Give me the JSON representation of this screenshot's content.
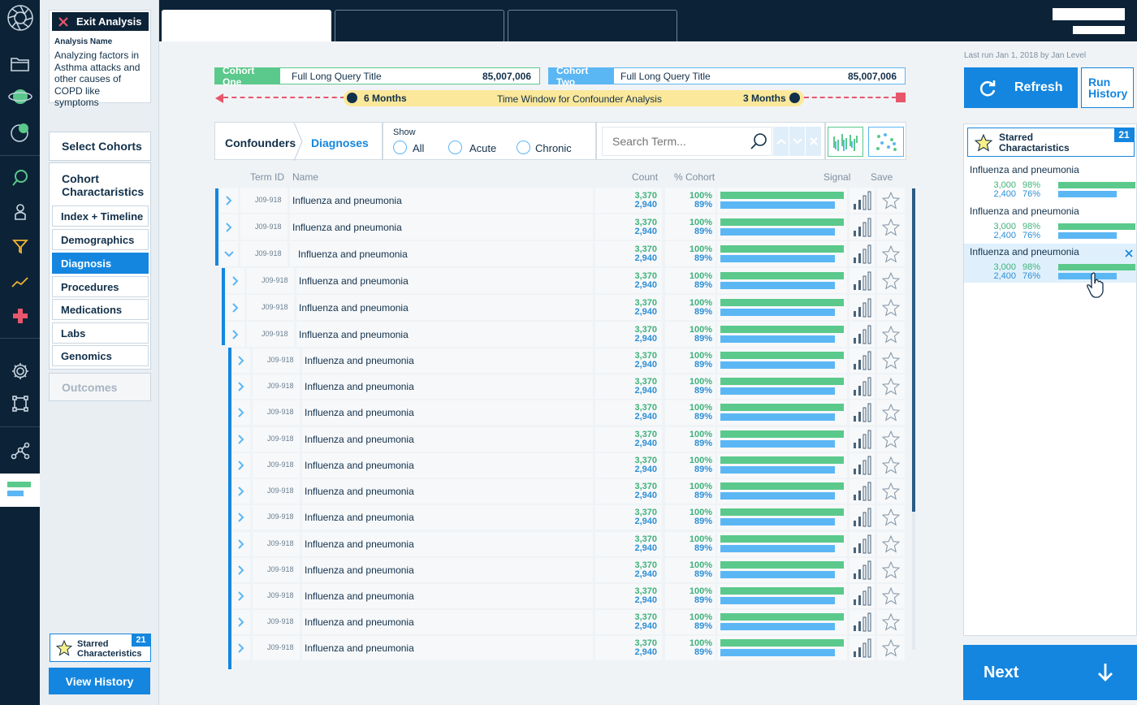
{
  "left_panel": {
    "exit_label": "Exit Analysis",
    "analysis_name_label": "Analysis Name",
    "analysis_name": "Analyzing factors in Asthma attacks and other causes of COPD like symptoms",
    "select_cohorts": "Select Cohorts",
    "cohort_char_title": "Cohort Charactaristics",
    "nav": [
      "Index + Timeline",
      "Demographics",
      "Diagnosis",
      "Procedures",
      "Medications",
      "Labs",
      "Genomics"
    ],
    "outcomes": "Outcomes",
    "starred_label": "Starred Characteristics",
    "starred_count": "21",
    "view_history": "View History"
  },
  "cohorts": {
    "one_tag": "Cohort One",
    "one_title": "Full Long Query Title",
    "one_count": "85,007,006",
    "two_tag": "Cohort Two",
    "two_title": "Full Long Query Title",
    "two_count": "85,007,006"
  },
  "timeline": {
    "left_label": "6 Months",
    "center_label": "Time Window for Confounder Analysis",
    "right_label": "3 Months"
  },
  "filters": {
    "crumb1": "Confounders",
    "crumb2": "Diagnoses",
    "show_label": "Show",
    "options": [
      "All",
      "Acute",
      "Chronic"
    ],
    "search_placeholder": "Search Term..."
  },
  "table": {
    "headers": {
      "term_id": "Term ID",
      "name": "Name",
      "count": "Count",
      "cohort_pct": "% Cohort",
      "signal": "Signal",
      "save": "Save"
    },
    "rows": [
      {
        "id": "J09-918",
        "name": "Influenza and pneumonia",
        "c1": "3,370",
        "c2": "2,940",
        "p1": "100%",
        "p2": "89%",
        "level": 0,
        "exp": "collapsed"
      },
      {
        "id": "J09-918",
        "name": "Influenza and pneumonia",
        "c1": "3,370",
        "c2": "2,940",
        "p1": "100%",
        "p2": "89%",
        "level": 0,
        "exp": "collapsed"
      },
      {
        "id": "J09-918",
        "name": "Influenza and pneumonia",
        "c1": "3,370",
        "c2": "2,940",
        "p1": "100%",
        "p2": "89%",
        "level": 0,
        "exp": "expanded"
      },
      {
        "id": "J09-918",
        "name": "Influenza and pneumonia",
        "c1": "3,370",
        "c2": "2,940",
        "p1": "100%",
        "p2": "89%",
        "level": 1,
        "exp": "collapsed"
      },
      {
        "id": "J09-918",
        "name": "Influenza and pneumonia",
        "c1": "3,370",
        "c2": "2,940",
        "p1": "100%",
        "p2": "89%",
        "level": 1,
        "exp": "collapsed"
      },
      {
        "id": "J09-918",
        "name": "Influenza and pneumonia",
        "c1": "3,370",
        "c2": "2,940",
        "p1": "100%",
        "p2": "89%",
        "level": 1,
        "exp": "collapsed"
      },
      {
        "id": "J09-918",
        "name": "Influenza and pneumonia",
        "c1": "3,370",
        "c2": "2,940",
        "p1": "100%",
        "p2": "89%",
        "level": 2,
        "exp": "collapsed"
      },
      {
        "id": "J09-918",
        "name": "Influenza and pneumonia",
        "c1": "3,370",
        "c2": "2,940",
        "p1": "100%",
        "p2": "89%",
        "level": 2,
        "exp": "collapsed"
      },
      {
        "id": "J09-918",
        "name": "Influenza and pneumonia",
        "c1": "3,370",
        "c2": "2,940",
        "p1": "100%",
        "p2": "89%",
        "level": 2,
        "exp": "collapsed"
      },
      {
        "id": "J09-918",
        "name": "Influenza and pneumonia",
        "c1": "3,370",
        "c2": "2,940",
        "p1": "100%",
        "p2": "89%",
        "level": 2,
        "exp": "collapsed"
      },
      {
        "id": "J09-918",
        "name": "Influenza and pneumonia",
        "c1": "3,370",
        "c2": "2,940",
        "p1": "100%",
        "p2": "89%",
        "level": 2,
        "exp": "collapsed"
      },
      {
        "id": "J09-918",
        "name": "Influenza and pneumonia",
        "c1": "3,370",
        "c2": "2,940",
        "p1": "100%",
        "p2": "89%",
        "level": 2,
        "exp": "collapsed"
      },
      {
        "id": "J09-918",
        "name": "Influenza and pneumonia",
        "c1": "3,370",
        "c2": "2,940",
        "p1": "100%",
        "p2": "89%",
        "level": 2,
        "exp": "collapsed"
      },
      {
        "id": "J09-918",
        "name": "Influenza and pneumonia",
        "c1": "3,370",
        "c2": "2,940",
        "p1": "100%",
        "p2": "89%",
        "level": 2,
        "exp": "collapsed"
      },
      {
        "id": "J09-918",
        "name": "Influenza and pneumonia",
        "c1": "3,370",
        "c2": "2,940",
        "p1": "100%",
        "p2": "89%",
        "level": 2,
        "exp": "collapsed"
      },
      {
        "id": "J09-918",
        "name": "Influenza and pneumonia",
        "c1": "3,370",
        "c2": "2,940",
        "p1": "100%",
        "p2": "89%",
        "level": 2,
        "exp": "collapsed"
      },
      {
        "id": "J09-918",
        "name": "Influenza and pneumonia",
        "c1": "3,370",
        "c2": "2,940",
        "p1": "100%",
        "p2": "89%",
        "level": 2,
        "exp": "collapsed"
      },
      {
        "id": "J09-918",
        "name": "Influenza and pneumonia",
        "c1": "3,370",
        "c2": "2,940",
        "p1": "100%",
        "p2": "89%",
        "level": 2,
        "exp": "collapsed"
      }
    ]
  },
  "right_panel": {
    "last_run": "Last run Jan 1, 2018 by Jan Level",
    "refresh_label": "Refresh",
    "run_history_label": "Run History",
    "starred_title": "Starred Charactaristics",
    "starred_count": "21",
    "items": [
      {
        "name": "Influenza and pneumonia",
        "c1": "3,000",
        "p1": "98%",
        "c2": "2,400",
        "p2": "76%"
      },
      {
        "name": "Influenza and pneumonia",
        "c1": "3,000",
        "p1": "98%",
        "c2": "2,400",
        "p2": "76%"
      },
      {
        "name": "Influenza and pneumonia",
        "c1": "3,000",
        "p1": "98%",
        "c2": "2,400",
        "p2": "76%"
      }
    ],
    "next_label": "Next"
  },
  "colors": {
    "navy": "#0c2337",
    "accent_blue": "#1486df",
    "green": "#5ac98b",
    "light_blue": "#5bb7f4",
    "timeline_yellow": "#fbe89a",
    "timeline_red": "#e8566c"
  }
}
